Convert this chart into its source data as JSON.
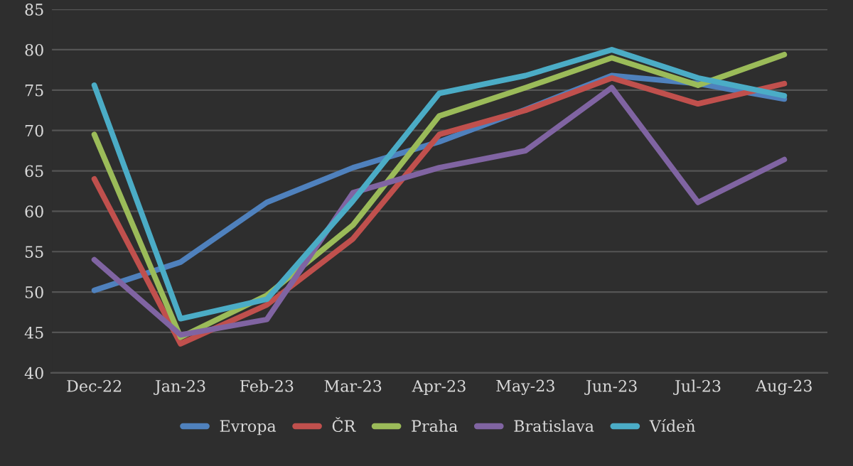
{
  "chart_data": {
    "type": "line",
    "categories": [
      "Dec-22",
      "Jan-23",
      "Feb-23",
      "Mar-23",
      "Apr-23",
      "May-23",
      "Jun-23",
      "Jul-23",
      "Aug-23"
    ],
    "series": [
      {
        "name": "Evropa",
        "color": "#4f81bd",
        "values": [
          50.2,
          53.7,
          61.1,
          65.4,
          68.6,
          72.6,
          76.8,
          75.8,
          73.9
        ]
      },
      {
        "name": "ČR",
        "color": "#c0504d",
        "values": [
          64.0,
          43.6,
          48.4,
          56.6,
          69.5,
          72.5,
          76.5,
          73.3,
          75.8
        ]
      },
      {
        "name": "Praha",
        "color": "#9bbb59",
        "values": [
          69.5,
          44.4,
          49.6,
          58.3,
          71.8,
          75.3,
          79.0,
          75.6,
          79.4
        ]
      },
      {
        "name": "Bratislava",
        "color": "#8064a2",
        "values": [
          54.0,
          44.7,
          46.6,
          62.3,
          65.4,
          67.5,
          75.3,
          61.1,
          66.4
        ]
      },
      {
        "name": "Vídeň",
        "color": "#4bacc6",
        "values": [
          75.6,
          46.7,
          49.1,
          61.3,
          74.6,
          76.8,
          80.0,
          76.5,
          74.3
        ]
      }
    ],
    "ylim": [
      40,
      85
    ],
    "yticks": [
      40,
      45,
      50,
      55,
      60,
      65,
      70,
      75,
      80,
      85
    ],
    "grid": "y",
    "legend": "bottom",
    "marker": "none",
    "line_style": "solid"
  }
}
